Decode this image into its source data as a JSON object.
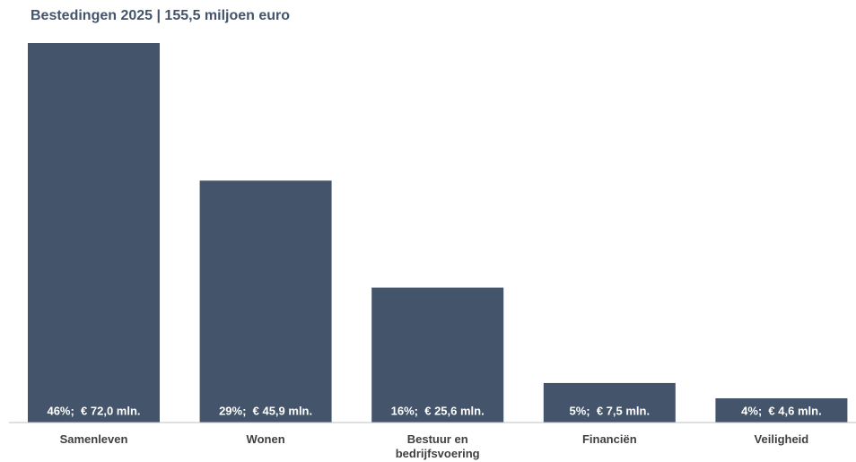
{
  "chart_data": {
    "type": "bar",
    "title": "Bestedingen 2025 | 155,5 miljoen euro",
    "categories": [
      "Samenleven",
      "Wonen",
      "Bestuur en bedrijfsvoering",
      "Financiën",
      "Veiligheid"
    ],
    "values": [
      72.0,
      45.9,
      25.6,
      7.5,
      4.6
    ],
    "value_labels": [
      "46%;  € 72,0 mln.",
      "29%;  € 45,9 mln.",
      "16%;  € 25,6 mln.",
      "5%;  € 7,5 mln.",
      "4%;  € 4,6 mln."
    ],
    "color": "#44546a"
  }
}
